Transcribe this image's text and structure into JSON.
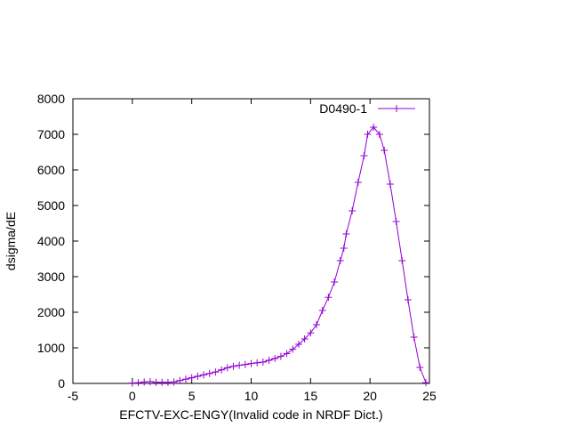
{
  "chart_data": {
    "type": "line",
    "title": "",
    "xlabel": "EFCTV-EXC-ENGY(Invalid code in NRDF Dict.)",
    "ylabel": "dsigma/dE",
    "xlim": [
      -5,
      25
    ],
    "ylim": [
      0,
      8000
    ],
    "x_ticks": [
      -5,
      0,
      5,
      10,
      15,
      20,
      25
    ],
    "x_tick_labels": [
      "-5",
      "0",
      "5",
      "10",
      "15",
      "20",
      "25"
    ],
    "y_ticks": [
      0,
      1000,
      2000,
      3000,
      4000,
      5000,
      6000,
      7000,
      8000
    ],
    "y_tick_labels": [
      "0",
      "1000",
      "2000",
      "3000",
      "4000",
      "5000",
      "6000",
      "7000",
      "8000"
    ],
    "grid": false,
    "legend_position": "top-right",
    "series": [
      {
        "name": "D0490-1",
        "color": "#9400d3",
        "marker": "plus",
        "x": [
          0,
          0.5,
          1,
          1.5,
          2,
          2.5,
          3,
          3.5,
          4,
          4.5,
          5,
          5.5,
          6,
          6.5,
          7,
          7.5,
          8,
          8.5,
          9,
          9.5,
          10,
          10.5,
          11,
          11.5,
          12,
          12.5,
          13,
          13.5,
          14,
          14.5,
          15,
          15.5,
          16,
          16.5,
          17,
          17.5,
          17.8,
          18,
          18.5,
          19,
          19.5,
          19.8,
          20.3,
          20.8,
          21.2,
          21.7,
          22.2,
          22.7,
          23.2,
          23.7,
          24.2,
          24.7
        ],
        "y": [
          10,
          20,
          40,
          50,
          30,
          30,
          30,
          40,
          80,
          120,
          160,
          200,
          240,
          280,
          320,
          380,
          440,
          480,
          510,
          530,
          560,
          580,
          600,
          650,
          700,
          760,
          840,
          960,
          1100,
          1250,
          1420,
          1650,
          2050,
          2420,
          2850,
          3450,
          3800,
          4200,
          4850,
          5650,
          6400,
          7000,
          7200,
          7000,
          6550,
          5600,
          4550,
          3450,
          2350,
          1300,
          450,
          20
        ]
      }
    ]
  }
}
